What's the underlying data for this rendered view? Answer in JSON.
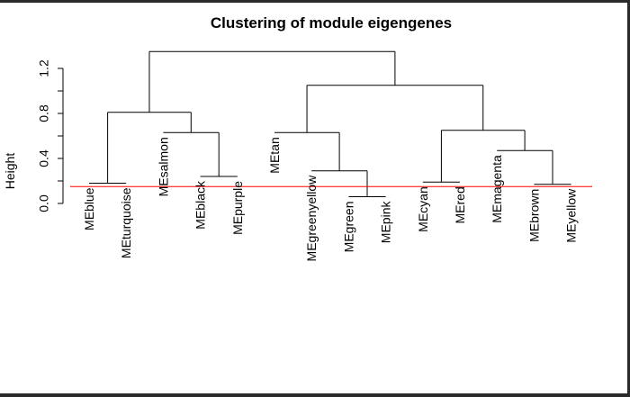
{
  "chart_data": {
    "type": "dendrogram",
    "title": "Clustering of module eigengenes",
    "ylabel": "Height",
    "xlabel": "",
    "ylim": [
      0,
      1.4
    ],
    "yticks": [
      {
        "value": 0.0,
        "label": "0.0"
      },
      {
        "value": 0.4,
        "label": "0.4"
      },
      {
        "value": 0.8,
        "label": "0.8"
      },
      {
        "value": 1.2,
        "label": "1.2"
      }
    ],
    "leaves": [
      {
        "name": "MEblue",
        "height": 0.18
      },
      {
        "name": "MEturquoise",
        "height": 0.18
      },
      {
        "name": "MEsalmon",
        "height": 0.63
      },
      {
        "name": "MEblack",
        "height": 0.24
      },
      {
        "name": "MEpurple",
        "height": 0.24
      },
      {
        "name": "MEtan",
        "height": 0.63
      },
      {
        "name": "MEgreenyellow",
        "height": 0.29
      },
      {
        "name": "MEgreen",
        "height": 0.06
      },
      {
        "name": "MEpink",
        "height": 0.06
      },
      {
        "name": "MEcyan",
        "height": 0.19
      },
      {
        "name": "MEred",
        "height": 0.19
      },
      {
        "name": "MEmagenta",
        "height": 0.47
      },
      {
        "name": "MEbrown",
        "height": 0.17
      },
      {
        "name": "MEyellow",
        "height": 0.17
      }
    ],
    "merges": [
      {
        "left": 7,
        "right": 8,
        "height": 0.06
      },
      {
        "left": 12,
        "right": 13,
        "height": 0.17
      },
      {
        "left": 0,
        "right": 1,
        "height": 0.18
      },
      {
        "left": 9,
        "right": 10,
        "height": 0.19
      },
      {
        "left": 3,
        "right": 4,
        "height": 0.24
      },
      {
        "left": 6,
        "right": "m0",
        "height": 0.29
      },
      {
        "left": 11,
        "right": "m1",
        "height": 0.47
      },
      {
        "left": 2,
        "right": "m4",
        "height": 0.63
      },
      {
        "left": 5,
        "right": "m5",
        "height": 0.63
      },
      {
        "left": "m3",
        "right": "m6",
        "height": 0.65
      },
      {
        "left": "m2",
        "right": "m7",
        "height": 0.81
      },
      {
        "left": "m8",
        "right": "m9",
        "height": 1.05
      },
      {
        "left": "m10",
        "right": "m11",
        "height": 1.35
      }
    ],
    "threshold": {
      "value": 0.15,
      "color": "#ff0000"
    },
    "colors": {
      "tree": "#000000",
      "axis": "#000000"
    }
  }
}
